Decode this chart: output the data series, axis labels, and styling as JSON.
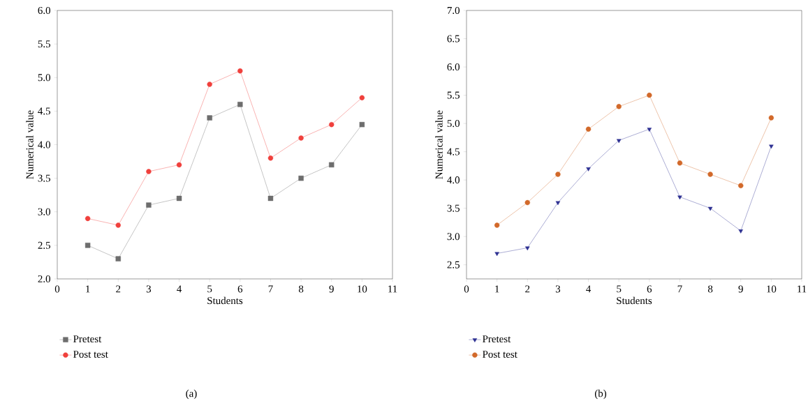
{
  "chart_data": [
    {
      "type": "line",
      "xlabel": "Students",
      "ylabel": "Numerical value",
      "x": [
        1,
        2,
        3,
        4,
        5,
        6,
        7,
        8,
        9,
        10
      ],
      "series": [
        {
          "name": "Pretest",
          "color": "#6d6d6d",
          "marker": "square",
          "values": [
            2.5,
            2.3,
            3.1,
            3.2,
            4.4,
            4.6,
            3.2,
            3.5,
            3.7,
            4.3
          ]
        },
        {
          "name": "Post test",
          "color": "#f0403c",
          "marker": "circle",
          "values": [
            2.9,
            2.8,
            3.6,
            3.7,
            4.9,
            5.1,
            3.8,
            4.1,
            4.3,
            4.7
          ]
        }
      ],
      "xlim": [
        0,
        11
      ],
      "xticks": [
        0,
        1,
        2,
        3,
        4,
        5,
        6,
        7,
        8,
        9,
        10,
        11
      ],
      "ylim": [
        2.0,
        6.0
      ],
      "yticks": [
        {
          "value": 2,
          "label": "2.0"
        },
        2.5,
        {
          "value": 3,
          "label": "3.0"
        },
        3.5,
        {
          "value": 4,
          "label": "4.0"
        },
        4.5,
        {
          "value": 5,
          "label": "5.0"
        },
        5.5,
        {
          "value": 6,
          "label": "6.0"
        }
      ],
      "legend": "bottom",
      "grid": false,
      "line_style": "solid",
      "annotations": [
        "(a)"
      ]
    },
    {
      "type": "line",
      "xlabel": "Students",
      "ylabel": "Numerical value",
      "x": [
        1,
        2,
        3,
        4,
        5,
        6,
        7,
        8,
        9,
        10
      ],
      "series": [
        {
          "name": "Pretest",
          "color": "#2e3192",
          "marker": "triangle",
          "values": [
            2.7,
            2.8,
            3.6,
            4.2,
            4.7,
            4.9,
            3.7,
            3.5,
            3.1,
            4.6
          ]
        },
        {
          "name": "Post test",
          "color": "#d2692a",
          "marker": "circle",
          "values": [
            3.2,
            3.6,
            4.1,
            4.9,
            5.3,
            5.5,
            4.3,
            4.1,
            3.9,
            5.1
          ]
        }
      ],
      "xlim": [
        0,
        11
      ],
      "xticks": [
        0,
        1,
        2,
        3,
        4,
        5,
        6,
        7,
        8,
        9,
        10,
        11
      ],
      "ylim": [
        2.25,
        7.0
      ],
      "yticks": [
        2.5,
        {
          "value": 3,
          "label": "3.0"
        },
        3.5,
        {
          "value": 4,
          "label": "4.0"
        },
        4.5,
        {
          "value": 5,
          "label": "5.0"
        },
        5.5,
        {
          "value": 6,
          "label": "6.0"
        },
        6.5,
        {
          "value": 7,
          "label": "7.0"
        }
      ],
      "legend": "bottom",
      "grid": false,
      "line_style": "solid",
      "annotations": [
        "(b)"
      ]
    }
  ]
}
